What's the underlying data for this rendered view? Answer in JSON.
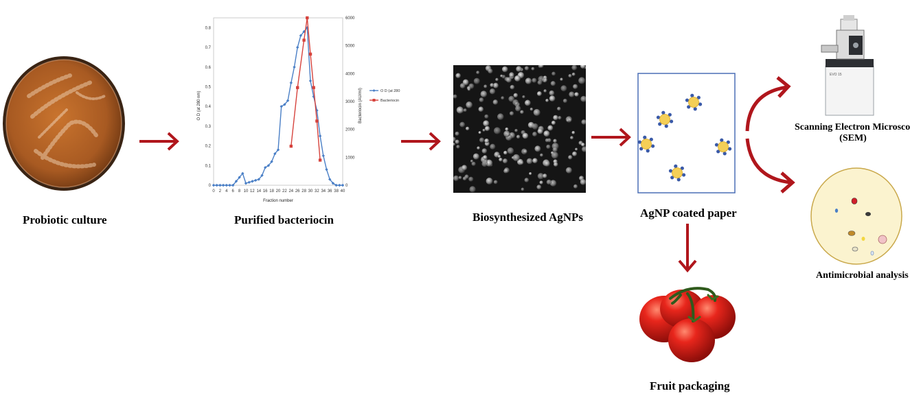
{
  "captions": {
    "probiotic": "Probiotic culture",
    "bacteriocin": "Purified bacteriocin",
    "agnps": "Biosynthesized AgNPs",
    "paper": "AgNP coated paper",
    "packaging": "Fruit packaging",
    "sem_line1": "Scanning Electron Microscopy",
    "sem_line2": "(SEM)",
    "antimicrobial": "Antimicrobial analysis"
  },
  "instrument_label": "EVO 15",
  "colors": {
    "arrow": "#b0161c",
    "od_series": "#4a7fc6",
    "bact_series": "#d6423c",
    "nanoparticle_core": "#f4cf57",
    "nanoparticle_ligand": "#3a5aa8",
    "plate_fill": "#fbf3cf",
    "plate_edge": "#c9a84a"
  },
  "chart_data": {
    "type": "line",
    "xlabel": "Fraction number",
    "ylabel_left": "O D (at 280 nm)",
    "ylabel_right": "Bacteriocin (AU/ml)",
    "xlim": [
      0,
      40
    ],
    "ylim_left": [
      0,
      0.85
    ],
    "ylim_right": [
      0,
      6000
    ],
    "x_ticks": [
      0,
      2,
      4,
      6,
      8,
      10,
      12,
      14,
      16,
      18,
      20,
      22,
      24,
      26,
      28,
      30,
      32,
      34,
      36,
      38,
      40
    ],
    "y_ticks_left": [
      0,
      0.1,
      0.2,
      0.3,
      0.4,
      0.5,
      0.6,
      0.7,
      0.8
    ],
    "y_ticks_left_labels": [
      "0",
      "0.1",
      "0.2",
      "0.3",
      "0.4",
      "0.5",
      "0.6",
      "0.7",
      "0.8"
    ],
    "y_ticks_right": [
      0,
      1000,
      2000,
      3000,
      4000,
      5000,
      6000
    ],
    "legend_position": "right",
    "series": [
      {
        "name": "O D (at 280 nm)",
        "axis": "left",
        "x": [
          0,
          1,
          2,
          3,
          4,
          5,
          6,
          7,
          8,
          9,
          10,
          11,
          12,
          13,
          14,
          15,
          16,
          17,
          18,
          19,
          20,
          21,
          22,
          23,
          24,
          25,
          26,
          27,
          28,
          29,
          30,
          31,
          32,
          33,
          34,
          35,
          36,
          37,
          38,
          39,
          40
        ],
        "y": [
          0,
          0,
          0,
          0,
          0,
          0,
          0,
          0.02,
          0.04,
          0.06,
          0.01,
          0.015,
          0.02,
          0.025,
          0.03,
          0.05,
          0.09,
          0.1,
          0.12,
          0.16,
          0.18,
          0.4,
          0.41,
          0.43,
          0.52,
          0.6,
          0.7,
          0.76,
          0.78,
          0.8,
          0.53,
          0.45,
          0.38,
          0.25,
          0.15,
          0.08,
          0.03,
          0.01,
          0,
          0,
          0
        ]
      },
      {
        "name": "Bacteriocin",
        "axis": "right",
        "x": [
          24,
          26,
          28,
          29,
          30,
          31,
          32,
          33
        ],
        "y": [
          1400,
          3500,
          5200,
          6000,
          4700,
          3500,
          2300,
          900
        ]
      }
    ]
  }
}
